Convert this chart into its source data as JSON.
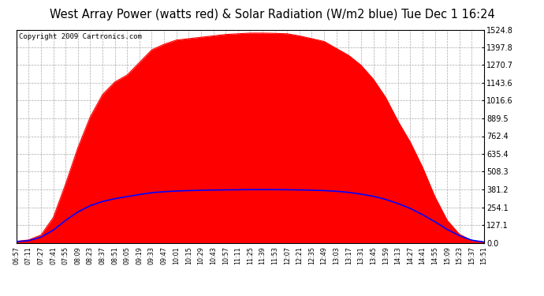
{
  "title": "West Array Power (watts red) & Solar Radiation (W/m2 blue) Tue Dec 1 16:24",
  "copyright_text": "Copyright 2009 Cartronics.com",
  "y_ticks": [
    0.0,
    127.1,
    254.1,
    381.2,
    508.3,
    635.4,
    762.4,
    889.5,
    1016.6,
    1143.6,
    1270.7,
    1397.8,
    1524.8
  ],
  "y_max": 1524.8,
  "x_labels": [
    "06:57",
    "07:11",
    "07:27",
    "07:41",
    "07:55",
    "08:09",
    "08:23",
    "08:37",
    "08:51",
    "09:05",
    "09:19",
    "09:33",
    "09:47",
    "10:01",
    "10:15",
    "10:29",
    "10:43",
    "10:57",
    "11:11",
    "11:25",
    "11:39",
    "11:53",
    "12:07",
    "12:21",
    "12:35",
    "12:49",
    "13:03",
    "13:17",
    "13:31",
    "13:45",
    "13:59",
    "14:13",
    "14:27",
    "14:41",
    "14:55",
    "15:09",
    "15:23",
    "15:37",
    "15:51"
  ],
  "red_values": [
    10,
    20,
    55,
    180,
    420,
    680,
    900,
    1060,
    1150,
    1200,
    1290,
    1380,
    1420,
    1450,
    1460,
    1470,
    1480,
    1490,
    1495,
    1500,
    1500,
    1498,
    1495,
    1480,
    1460,
    1440,
    1390,
    1340,
    1270,
    1170,
    1040,
    870,
    720,
    540,
    330,
    160,
    60,
    15,
    5
  ],
  "blue_values": [
    8,
    15,
    40,
    90,
    160,
    220,
    265,
    295,
    315,
    330,
    345,
    358,
    365,
    370,
    373,
    375,
    377,
    378,
    379,
    380,
    380,
    380,
    379,
    378,
    376,
    373,
    368,
    360,
    348,
    332,
    310,
    280,
    245,
    200,
    150,
    95,
    50,
    18,
    5
  ],
  "background_color": "#ffffff",
  "plot_bg_color": "#ffffff",
  "red_fill_color": "#ff0000",
  "blue_line_color": "#0000ff",
  "grid_color": "#aaaaaa",
  "title_fontsize": 10.5,
  "copyright_fontsize": 6.5,
  "fig_width": 6.9,
  "fig_height": 3.75,
  "dpi": 100
}
